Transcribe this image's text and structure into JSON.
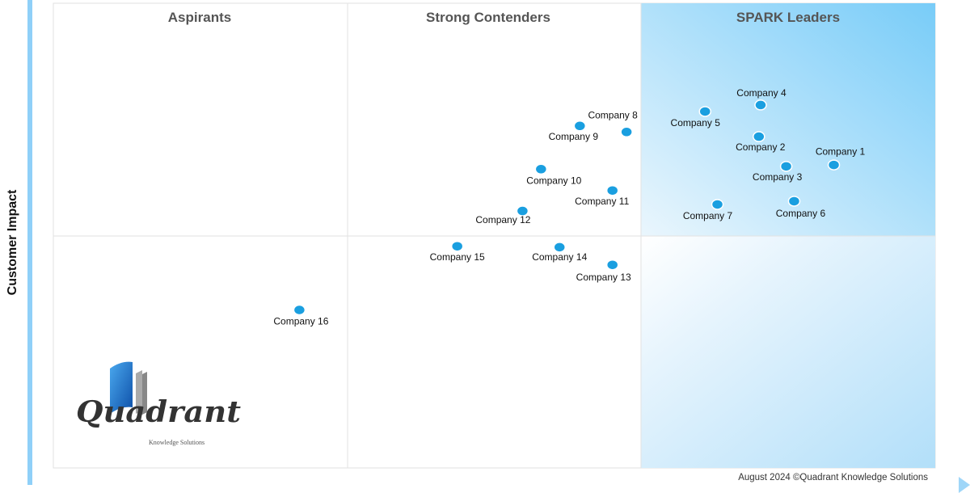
{
  "chart_data": {
    "type": "scatter",
    "title": "",
    "xlabel": "",
    "ylabel": "Customer Impact",
    "xlim": [
      0,
      100
    ],
    "ylim": [
      0,
      100
    ],
    "grid": false,
    "quadrants": [
      "Aspirants",
      "Strong Contenders",
      "SPARK Leaders"
    ],
    "points": [
      {
        "label": "Company 1",
        "x": 88.5,
        "y": 65.2
      },
      {
        "label": "Company 2",
        "x": 80.0,
        "y": 71.3
      },
      {
        "label": "Company 3",
        "x": 83.1,
        "y": 64.9
      },
      {
        "label": "Company 4",
        "x": 80.2,
        "y": 78.1
      },
      {
        "label": "Company 5",
        "x": 73.9,
        "y": 76.7
      },
      {
        "label": "Company 6",
        "x": 84.0,
        "y": 57.4
      },
      {
        "label": "Company 7",
        "x": 75.3,
        "y": 56.7
      },
      {
        "label": "Company 8",
        "x": 65.0,
        "y": 72.3
      },
      {
        "label": "Company 9",
        "x": 59.7,
        "y": 73.6
      },
      {
        "label": "Company 10",
        "x": 55.3,
        "y": 64.3
      },
      {
        "label": "Company 11",
        "x": 63.4,
        "y": 59.7
      },
      {
        "label": "Company 12",
        "x": 53.2,
        "y": 55.3
      },
      {
        "label": "Company 13",
        "x": 63.4,
        "y": 43.7
      },
      {
        "label": "Company 14",
        "x": 57.4,
        "y": 47.5
      },
      {
        "label": "Company 15",
        "x": 45.8,
        "y": 47.7
      },
      {
        "label": "Company 16",
        "x": 27.9,
        "y": 34.0
      }
    ],
    "colors": {
      "point": "#1a9fe0",
      "leaders_dark": "#78ccf8",
      "leaders_light": "#eaf6fd",
      "axis_bar": "#8fd0f8"
    }
  },
  "footer": "August 2024 ©Quadrant Knowledge Solutions",
  "logo": {
    "name": "Quadrant",
    "tagline": "Knowledge Solutions"
  }
}
